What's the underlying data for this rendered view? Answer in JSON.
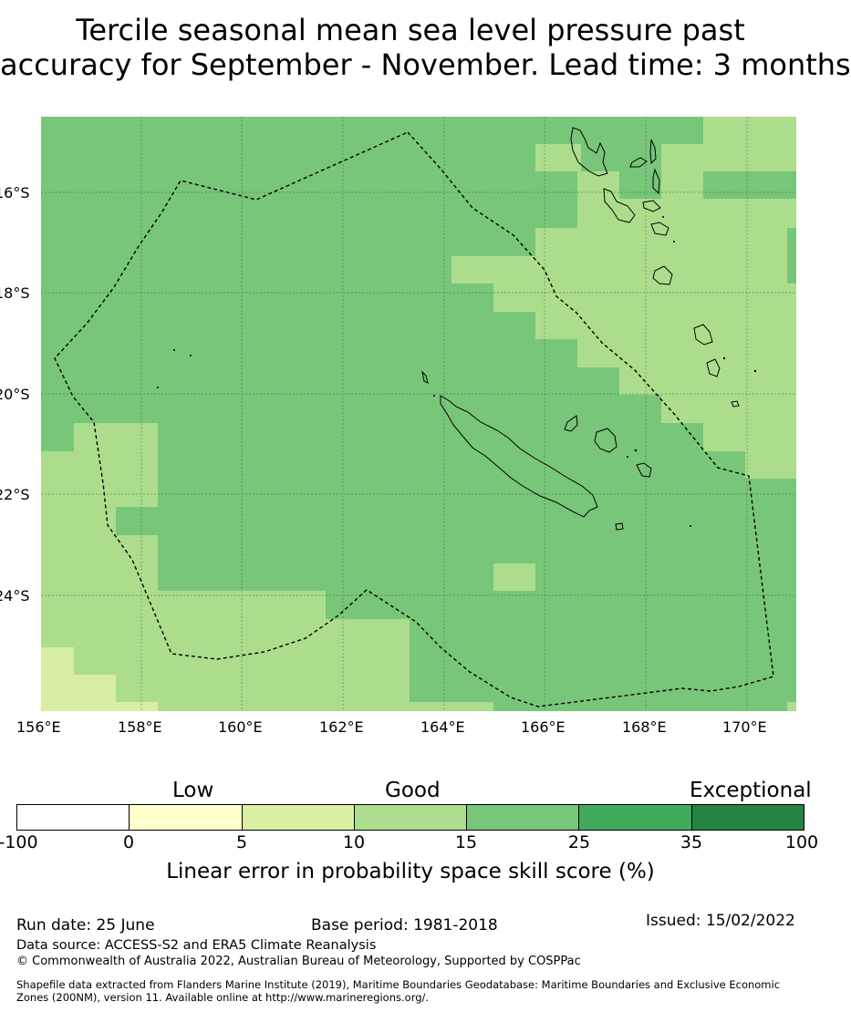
{
  "title_line1": "Tercile seasonal mean sea level pressure past",
  "title_line2": "accuracy for September - November. Lead time: 3 months",
  "map": {
    "lat_labels": [
      "16°S",
      "18°S",
      "20°S",
      "22°S",
      "24°S"
    ],
    "lon_labels": [
      "156°E",
      "158°E",
      "160°E",
      "162°E",
      "164°E",
      "166°E",
      "168°E",
      "170°E"
    ],
    "region_extent": {
      "lon": [
        156,
        171
      ],
      "lat": [
        -26.5,
        -14.5
      ]
    },
    "colors": {
      "c1": "#d8eea2",
      "c2": "#acdd8d",
      "c3": "#78c679"
    }
  },
  "colorbar": {
    "categories": [
      "Low",
      "Good",
      "Exceptional"
    ],
    "ticks": [
      "-100",
      "0",
      "5",
      "10",
      "15",
      "25",
      "35",
      "100"
    ],
    "colors": [
      "#ffffff",
      "#ffffcc",
      "#d9f0a3",
      "#addd8e",
      "#78c679",
      "#41ab5d",
      "#238443"
    ],
    "label": "Linear error in probability space skill score (%)"
  },
  "footer": {
    "run_date": "Run date: 25 June",
    "base_period": "Base period: 1981-2018",
    "issued": "Issued: 15/02/2022",
    "data_source": "Data source: ACCESS-S2 and ERA5 Climate Reanalysis",
    "copyright": "© Commonwealth of Australia 2022, Australian Bureau of Meteorology, Supported by COSPPac",
    "shapefile_line1": "Shapefile data extracted from Flanders Marine Institute (2019), Maritime Boundaries Geodatabase: Maritime Boundaries and Exclusive Economic",
    "shapefile_line2": "Zones (200NM), version 11. Available online at http://www.marineregions.org/."
  }
}
